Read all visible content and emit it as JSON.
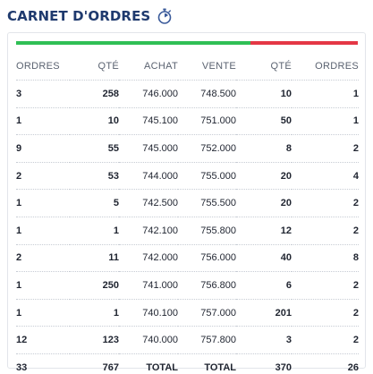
{
  "header": {
    "title": "CARNET D'ORDRES",
    "icon": "stopwatch-icon"
  },
  "colors": {
    "title": "#1f3a6e",
    "bid_bar": "#2fbf55",
    "ask_bar": "#e43745"
  },
  "columns": [
    "ORDRES",
    "QTÉ",
    "ACHAT",
    "VENTE",
    "QTÉ",
    "ORDRES"
  ],
  "rows": [
    [
      "3",
      "258",
      "746.000",
      "748.500",
      "10",
      "1"
    ],
    [
      "1",
      "10",
      "745.100",
      "751.000",
      "50",
      "1"
    ],
    [
      "9",
      "55",
      "745.000",
      "752.000",
      "8",
      "2"
    ],
    [
      "2",
      "53",
      "744.000",
      "755.000",
      "20",
      "4"
    ],
    [
      "1",
      "5",
      "742.500",
      "755.500",
      "20",
      "2"
    ],
    [
      "1",
      "1",
      "742.100",
      "755.800",
      "12",
      "2"
    ],
    [
      "2",
      "11",
      "742.000",
      "756.000",
      "40",
      "8"
    ],
    [
      "1",
      "250",
      "741.000",
      "756.800",
      "6",
      "2"
    ],
    [
      "1",
      "1",
      "740.100",
      "757.000",
      "201",
      "2"
    ],
    [
      "12",
      "123",
      "740.000",
      "757.800",
      "3",
      "2"
    ]
  ],
  "total": [
    "33",
    "767",
    "TOTAL",
    "TOTAL",
    "370",
    "26"
  ]
}
